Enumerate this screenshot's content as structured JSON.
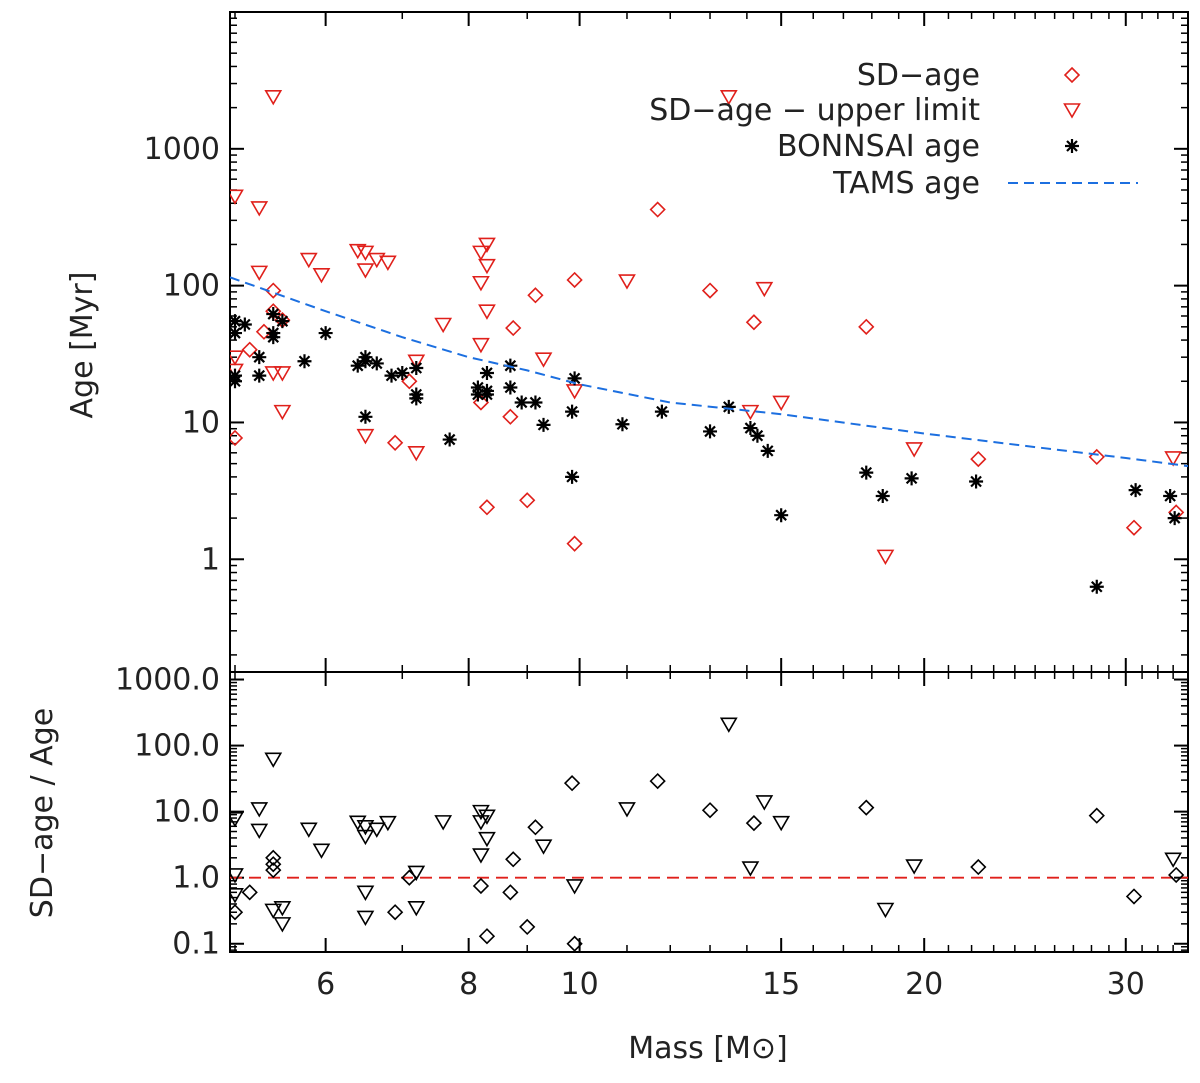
{
  "chart_data": [
    {
      "type": "scatter",
      "panel": "top",
      "xscale": "log",
      "yscale": "log",
      "xlim": [
        4.95,
        34.0
      ],
      "ylim": [
        0.15,
        10000
      ],
      "ylabel": "Age [Myr]",
      "yticks": [
        1,
        10,
        100,
        1000
      ],
      "yticklabels": [
        "1",
        "10",
        "100",
        "1000"
      ],
      "legend": {
        "position": "top-right",
        "entries": [
          {
            "label": "SD−age",
            "marker": "diamond",
            "color": "#e0201b"
          },
          {
            "label": "SD−age − upper limit",
            "marker": "triangle-down",
            "color": "#e0201b"
          },
          {
            "label": "BONNSAI age",
            "marker": "asterisk",
            "color": "#000000"
          },
          {
            "label": "TAMS age",
            "marker": "dashed-line",
            "color": "#1c6fe0"
          }
        ]
      },
      "series": [
        {
          "name": "SD−age",
          "marker": "diamond",
          "color": "#e0201b",
          "points": [
            [
              5.0,
              7.7
            ],
            [
              5.15,
              34
            ],
            [
              5.3,
              46
            ],
            [
              5.4,
              92
            ],
            [
              5.4,
              65
            ],
            [
              5.5,
              56
            ],
            [
              6.9,
              7.1
            ],
            [
              7.1,
              20
            ],
            [
              8.2,
              14
            ],
            [
              8.3,
              2.4
            ],
            [
              8.7,
              11
            ],
            [
              8.75,
              49
            ],
            [
              9.0,
              2.7
            ],
            [
              9.15,
              85
            ],
            [
              9.9,
              110
            ],
            [
              9.9,
              1.3
            ],
            [
              11.7,
              360
            ],
            [
              13.0,
              92
            ],
            [
              14.2,
              54
            ],
            [
              17.8,
              50
            ],
            [
              22.3,
              5.4
            ],
            [
              28.3,
              5.6
            ],
            [
              30.5,
              1.7
            ],
            [
              33.2,
              2.2
            ]
          ]
        },
        {
          "name": "SD−age − upper limit",
          "marker": "triangle-down",
          "color": "#e0201b",
          "points": [
            [
              5.0,
              450
            ],
            [
              5.0,
              30
            ],
            [
              5.0,
              24
            ],
            [
              5.25,
              370
            ],
            [
              5.25,
              125
            ],
            [
              5.4,
              2400
            ],
            [
              5.4,
              23
            ],
            [
              5.5,
              23
            ],
            [
              5.5,
              12
            ],
            [
              5.8,
              155
            ],
            [
              5.95,
              120
            ],
            [
              6.4,
              180
            ],
            [
              6.5,
              175
            ],
            [
              6.5,
              130
            ],
            [
              6.5,
              8
            ],
            [
              6.65,
              155
            ],
            [
              6.8,
              148
            ],
            [
              7.2,
              28
            ],
            [
              7.2,
              6
            ],
            [
              7.6,
              52
            ],
            [
              8.2,
              175
            ],
            [
              8.2,
              105
            ],
            [
              8.2,
              37
            ],
            [
              8.3,
              200
            ],
            [
              8.3,
              140
            ],
            [
              8.3,
              65
            ],
            [
              9.3,
              29
            ],
            [
              9.9,
              17
            ],
            [
              11.0,
              108
            ],
            [
              13.5,
              2400
            ],
            [
              14.1,
              12
            ],
            [
              14.5,
              95
            ],
            [
              15.0,
              14
            ],
            [
              18.5,
              1.05
            ],
            [
              19.6,
              6.4
            ],
            [
              33.0,
              5.5
            ]
          ]
        },
        {
          "name": "BONNSAI age",
          "marker": "asterisk",
          "color": "#000000",
          "points": [
            [
              5.0,
              55
            ],
            [
              5.0,
              45
            ],
            [
              5.0,
              22
            ],
            [
              5.0,
              20
            ],
            [
              5.1,
              52
            ],
            [
              5.25,
              30
            ],
            [
              5.25,
              22
            ],
            [
              5.4,
              62
            ],
            [
              5.4,
              45
            ],
            [
              5.4,
              42
            ],
            [
              5.5,
              55
            ],
            [
              5.75,
              28
            ],
            [
              6.0,
              45
            ],
            [
              6.4,
              26
            ],
            [
              6.5,
              30
            ],
            [
              6.5,
              28
            ],
            [
              6.5,
              11
            ],
            [
              6.65,
              27
            ],
            [
              6.85,
              22
            ],
            [
              7.0,
              23
            ],
            [
              7.2,
              25
            ],
            [
              7.2,
              16
            ],
            [
              7.2,
              15
            ],
            [
              7.7,
              7.5
            ],
            [
              8.15,
              18
            ],
            [
              8.15,
              16
            ],
            [
              8.3,
              17
            ],
            [
              8.3,
              23
            ],
            [
              8.3,
              16
            ],
            [
              8.7,
              26
            ],
            [
              8.7,
              18
            ],
            [
              8.9,
              14
            ],
            [
              9.15,
              14
            ],
            [
              9.3,
              9.6
            ],
            [
              9.85,
              12
            ],
            [
              9.85,
              4.0
            ],
            [
              9.9,
              21
            ],
            [
              10.9,
              9.7
            ],
            [
              11.8,
              12
            ],
            [
              13.0,
              8.6
            ],
            [
              13.5,
              13
            ],
            [
              14.1,
              9.1
            ],
            [
              14.3,
              8.0
            ],
            [
              14.6,
              6.2
            ],
            [
              15.0,
              2.1
            ],
            [
              17.8,
              4.3
            ],
            [
              18.4,
              2.9
            ],
            [
              19.5,
              3.9
            ],
            [
              22.2,
              3.7
            ],
            [
              28.3,
              0.63
            ],
            [
              30.6,
              3.2
            ],
            [
              32.8,
              2.9
            ],
            [
              33.1,
              2.0
            ]
          ]
        },
        {
          "name": "TAMS age",
          "marker": "dashed-line",
          "color": "#1c6fe0",
          "points": [
            [
              4.95,
              115
            ],
            [
              6.0,
              65
            ],
            [
              7.0,
              42
            ],
            [
              8.0,
              30
            ],
            [
              9.0,
              24
            ],
            [
              10.0,
              19
            ],
            [
              12.0,
              14
            ],
            [
              15.0,
              11.5
            ],
            [
              20.0,
              8.3
            ],
            [
              25.0,
              6.6
            ],
            [
              30.0,
              5.5
            ],
            [
              34.0,
              4.8
            ]
          ]
        }
      ]
    },
    {
      "type": "scatter",
      "panel": "bottom",
      "xscale": "log",
      "yscale": "log",
      "xlim": [
        4.95,
        34.0
      ],
      "ylim": [
        0.075,
        1300
      ],
      "xlabel": "Mass [M⊙]",
      "ylabel": "SD−age / Age",
      "xticks": [
        6,
        8,
        10,
        15,
        20,
        30
      ],
      "xticklabels": [
        "6",
        "8",
        "10",
        "15",
        "20",
        "30"
      ],
      "yticks": [
        0.1,
        1,
        10,
        100,
        1000
      ],
      "yticklabels": [
        "0.1",
        "1.0",
        "10.0",
        "100.0",
        "1000.0"
      ],
      "reference_line": {
        "y": 1.0,
        "color": "#e0201b",
        "style": "dashed"
      },
      "series": [
        {
          "name": "SD−age",
          "marker": "diamond",
          "color": "#000000",
          "points": [
            [
              5.0,
              0.3
            ],
            [
              5.15,
              0.6
            ],
            [
              5.4,
              2.0
            ],
            [
              5.4,
              1.6
            ],
            [
              5.4,
              1.3
            ],
            [
              6.9,
              0.3
            ],
            [
              7.1,
              1.0
            ],
            [
              8.2,
              0.75
            ],
            [
              8.3,
              0.13
            ],
            [
              8.7,
              0.6
            ],
            [
              8.75,
              1.9
            ],
            [
              9.0,
              0.18
            ],
            [
              9.15,
              5.8
            ],
            [
              9.85,
              27
            ],
            [
              9.9,
              0.1
            ],
            [
              11.7,
              29
            ],
            [
              13.0,
              10.5
            ],
            [
              14.2,
              6.7
            ],
            [
              17.8,
              11.5
            ],
            [
              22.3,
              1.45
            ],
            [
              28.3,
              8.7
            ],
            [
              30.5,
              0.52
            ],
            [
              33.2,
              1.1
            ]
          ]
        },
        {
          "name": "SD−age − upper limit",
          "marker": "triangle-down",
          "color": "#000000",
          "points": [
            [
              5.0,
              7.8
            ],
            [
              5.0,
              1.1
            ],
            [
              5.0,
              0.55
            ],
            [
              5.25,
              11
            ],
            [
              5.25,
              5.2
            ],
            [
              5.4,
              62
            ],
            [
              5.4,
              0.32
            ],
            [
              5.5,
              0.35
            ],
            [
              5.5,
              0.2
            ],
            [
              5.8,
              5.4
            ],
            [
              5.95,
              2.6
            ],
            [
              6.4,
              6.9
            ],
            [
              6.5,
              5.9
            ],
            [
              6.5,
              4.2
            ],
            [
              6.5,
              0.6
            ],
            [
              6.5,
              0.25
            ],
            [
              6.65,
              5.4
            ],
            [
              6.8,
              6.8
            ],
            [
              7.2,
              1.2
            ],
            [
              7.2,
              0.35
            ],
            [
              7.6,
              7.0
            ],
            [
              8.2,
              10
            ],
            [
              8.2,
              7.0
            ],
            [
              8.2,
              2.2
            ],
            [
              8.3,
              8.5
            ],
            [
              8.3,
              3.9
            ],
            [
              9.3,
              3.0
            ],
            [
              9.9,
              0.75
            ],
            [
              11.0,
              11
            ],
            [
              13.5,
              210
            ],
            [
              14.1,
              1.4
            ],
            [
              14.5,
              14
            ],
            [
              15.0,
              6.8
            ],
            [
              18.5,
              0.33
            ],
            [
              19.6,
              1.5
            ],
            [
              33.0,
              1.9
            ]
          ]
        }
      ]
    }
  ]
}
